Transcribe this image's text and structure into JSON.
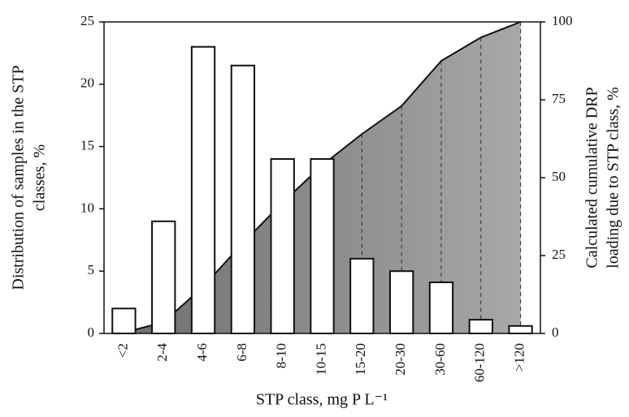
{
  "chart_data": {
    "type": "bar",
    "xlabel": "STP class, mg P L⁻¹",
    "ylabel": [
      "Distribution of samples in the STP",
      "classes, %"
    ],
    "y2label": [
      "Calculated cumulative DRP",
      "loading due to STP class, %"
    ],
    "categories": [
      "<2",
      "2-4",
      "4-6",
      "6-8",
      "8-10",
      "10-15",
      "15-20",
      "20-30",
      "30-60",
      "60-120",
      ">120"
    ],
    "series": [
      {
        "type": "bar",
        "color": "#ffffff",
        "values": [
          2,
          9,
          23,
          21.5,
          14,
          14,
          6,
          5,
          4.1,
          1.1,
          0.6
        ]
      },
      {
        "type": "area",
        "axis": "y2",
        "color": "#8a8a8a",
        "values": [
          0.3,
          3.6,
          15,
          29,
          42,
          54,
          64,
          73,
          87.5,
          95,
          100
        ]
      }
    ],
    "ylim": [
      0,
      25
    ],
    "yticks": [
      0,
      5,
      10,
      15,
      20,
      25
    ],
    "y2lim": [
      0,
      100
    ],
    "y2ticks": [
      0,
      25,
      50,
      75,
      100
    ]
  }
}
